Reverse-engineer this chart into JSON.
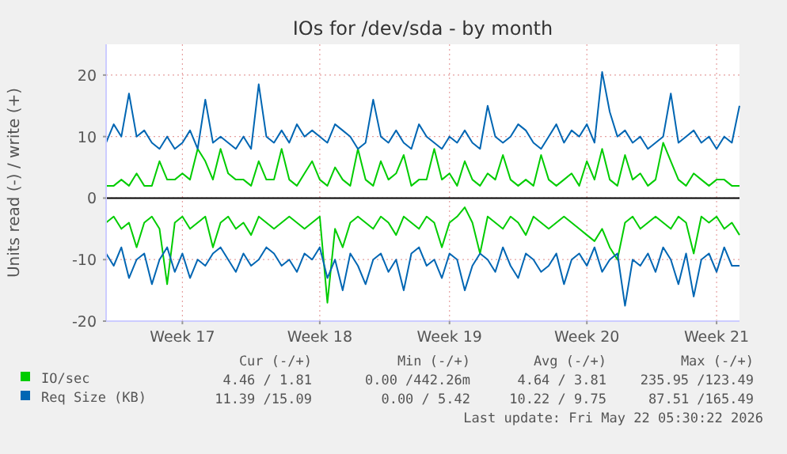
{
  "chart_data": {
    "type": "line",
    "title": "IOs for /dev/sda - by month",
    "ylabel": "Units read (-) / write (+)",
    "categories": [
      null,
      null,
      null,
      null,
      null,
      null,
      null,
      null,
      null,
      null,
      "Week 17",
      null,
      null,
      null,
      null,
      null,
      null,
      null,
      null,
      null,
      null,
      null,
      null,
      null,
      null,
      null,
      null,
      null,
      "Week 18",
      null,
      null,
      null,
      null,
      null,
      null,
      null,
      null,
      null,
      null,
      null,
      null,
      null,
      null,
      null,
      null,
      "Week 19",
      null,
      null,
      null,
      null,
      null,
      null,
      null,
      null,
      null,
      null,
      null,
      null,
      null,
      null,
      null,
      null,
      null,
      "Week 20",
      null,
      null,
      null,
      null,
      null,
      null,
      null,
      null,
      null,
      null,
      null,
      null,
      null,
      null,
      null,
      null,
      "Week 21",
      null,
      null,
      null
    ],
    "ylim": [
      -20,
      25
    ],
    "yticks": [
      -20,
      -10,
      0,
      10,
      20
    ],
    "grid": true,
    "legend": "bottom",
    "ref_lines": [
      {
        "axis": "y",
        "value": 0,
        "color": "#000000"
      }
    ],
    "series": [
      {
        "name": "IO/sec",
        "color": "#00cc00",
        "values": [
          2,
          2,
          3,
          2,
          4,
          2,
          2,
          6,
          3,
          3,
          4,
          3,
          8,
          6,
          3,
          8,
          4,
          3,
          3,
          2,
          6,
          3,
          3,
          8,
          3,
          2,
          4,
          6,
          3,
          2,
          5,
          3,
          2,
          8,
          3,
          2,
          6,
          3,
          4,
          7,
          2,
          3,
          3,
          8,
          3,
          4,
          2,
          6,
          3,
          2,
          4,
          3,
          7,
          3,
          2,
          3,
          2,
          7,
          3,
          2,
          3,
          4,
          2,
          6,
          3,
          8,
          3,
          2,
          7,
          3,
          4,
          2,
          3,
          9,
          6,
          3,
          2,
          4,
          3,
          2,
          3,
          3,
          2,
          2
        ]
      },
      {
        "name": "Req Size (KB)",
        "color": "#0066b3",
        "values": [
          9,
          12,
          10,
          17,
          10,
          11,
          9,
          8,
          10,
          8,
          9,
          11,
          8,
          16,
          9,
          10,
          9,
          8,
          10,
          8,
          18.5,
          10,
          9,
          11,
          9,
          12,
          10,
          11,
          10,
          9,
          12,
          11,
          10,
          8,
          9,
          16,
          10,
          9,
          11,
          9,
          8,
          12,
          10,
          9,
          8,
          10,
          9,
          11,
          9,
          8,
          15,
          10,
          9,
          10,
          12,
          11,
          9,
          8,
          10,
          12,
          9,
          11,
          10,
          12,
          9,
          20.5,
          14,
          10,
          11,
          9,
          10,
          8,
          9,
          10,
          17,
          9,
          10,
          11,
          9,
          10,
          8,
          10,
          9,
          15
        ]
      },
      {
        "color": "#00cc00",
        "values": [
          -4,
          -3,
          -5,
          -4,
          -8,
          -4,
          -3,
          -5,
          -14,
          -4,
          -3,
          -5,
          -4,
          -3,
          -8,
          -4,
          -3,
          -5,
          -4,
          -6,
          -3,
          -4,
          -5,
          -4,
          -3,
          -4,
          -5,
          -4,
          -3,
          -17,
          -5,
          -8,
          -4,
          -3,
          -4,
          -5,
          -3,
          -4,
          -6,
          -3,
          -4,
          -5,
          -3,
          -4,
          -8,
          -4,
          -3,
          -1.5,
          -4,
          -9,
          -3,
          -4,
          -5,
          -3,
          -4,
          -6,
          -3,
          -4,
          -5,
          -4,
          -3,
          -4,
          -5,
          -6,
          -7,
          -5,
          -8,
          -10,
          -4,
          -3,
          -5,
          -4,
          -3,
          -4,
          -5,
          -3,
          -4,
          -9,
          -3,
          -4,
          -3,
          -5,
          -4,
          -6
        ]
      },
      {
        "color": "#0066b3",
        "values": [
          -9,
          -11,
          -8,
          -13,
          -10,
          -9,
          -14,
          -10,
          -8,
          -12,
          -9,
          -13,
          -10,
          -11,
          -9,
          -8,
          -10,
          -12,
          -9,
          -11,
          -10,
          -8,
          -9,
          -11,
          -10,
          -12,
          -9,
          -10,
          -8,
          -13,
          -10,
          -15,
          -9,
          -11,
          -14,
          -10,
          -9,
          -12,
          -10,
          -15,
          -9,
          -8,
          -11,
          -10,
          -13,
          -9,
          -10,
          -15,
          -11,
          -9,
          -10,
          -12,
          -8,
          -11,
          -13,
          -9,
          -10,
          -12,
          -11,
          -9,
          -14,
          -10,
          -9,
          -11,
          -8,
          -12,
          -10,
          -9,
          -17.5,
          -10,
          -11,
          -9,
          -12,
          -8,
          -10,
          -14,
          -9,
          -16,
          -10,
          -9,
          -12,
          -8,
          -11,
          -11
        ]
      }
    ],
    "annotations": [
      "Cur (-/+)",
      "Min (-/+)",
      "Avg (-/+)",
      "Max (-/+)",
      "4.46 / 1.81",
      "0.00 /442.26m",
      "4.64 / 3.81",
      "235.95 /123.49",
      "11.39 /15.09",
      "0.00 / 5.42",
      "10.22 / 9.75",
      "87.51 /165.49",
      "Last update: Fri May 22 05:30:22 2026"
    ]
  }
}
